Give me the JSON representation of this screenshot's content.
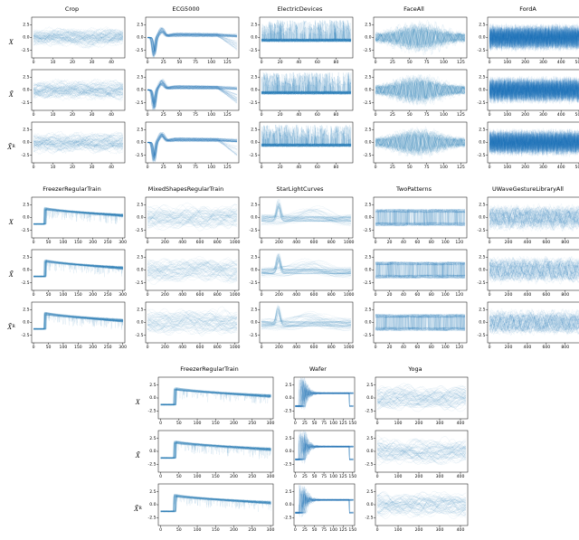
{
  "figure": {
    "background": "#ffffff",
    "line_color": "#1f77b4",
    "axis_color": "#000000",
    "series_style": "ensemble-overlay"
  },
  "row_labels": [
    {
      "base": "X",
      "sub": ""
    },
    {
      "base": "X̃",
      "sub": ""
    },
    {
      "base": "X̃",
      "sub": "R"
    }
  ],
  "groups": [
    {
      "columns": [
        0,
        1,
        2,
        3,
        4
      ]
    },
    {
      "columns": [
        5,
        6,
        7,
        8,
        9
      ]
    },
    {
      "columns": [
        10,
        11,
        12
      ]
    }
  ],
  "chart_data": [
    {
      "type": "line",
      "title": "Crop",
      "signal": "smooth",
      "x_max": 46,
      "x_ticks": [
        0,
        10,
        20,
        30,
        40
      ],
      "y_ticks": [
        2.5,
        0.0,
        -2.5
      ],
      "ylim": [
        -4,
        4
      ],
      "n_series": 60,
      "alpha": 0.1,
      "points": 110,
      "xlabel": "",
      "ylabel": ""
    },
    {
      "type": "line",
      "title": "ECG5000",
      "signal": "ecg",
      "x_max": 140,
      "x_ticks": [
        0,
        25,
        50,
        75,
        100,
        125
      ],
      "y_ticks": [
        2.5,
        0.0,
        -2.5
      ],
      "ylim": [
        -4,
        4
      ],
      "n_series": 60,
      "alpha": 0.12,
      "points": 170,
      "xlabel": "",
      "ylabel": ""
    },
    {
      "type": "line",
      "title": "ElectricDevices",
      "signal": "spikes",
      "x_max": 96,
      "x_ticks": [
        0,
        20,
        40,
        60,
        80
      ],
      "y_ticks": [
        2.5,
        0.0,
        -2.5
      ],
      "ylim": [
        -4,
        4
      ],
      "n_series": 60,
      "alpha": 0.15,
      "points": 200,
      "xlabel": "",
      "ylabel": ""
    },
    {
      "type": "line",
      "title": "FaceAll",
      "signal": "am",
      "x_max": 131,
      "x_ticks": [
        0,
        25,
        50,
        75,
        100,
        125
      ],
      "y_ticks": [
        2.5,
        0.0,
        -2.5
      ],
      "ylim": [
        -4,
        4
      ],
      "n_series": 70,
      "alpha": 0.09,
      "points": 220,
      "xlabel": "",
      "ylabel": ""
    },
    {
      "type": "line",
      "title": "FordA",
      "signal": "noise",
      "x_max": 500,
      "x_ticks": [
        0,
        100,
        200,
        300,
        400,
        500
      ],
      "y_ticks": [
        2.5,
        0.0,
        -2.5
      ],
      "ylim": [
        -4,
        4
      ],
      "n_series": 80,
      "alpha": 0.07,
      "points": 260,
      "xlabel": "",
      "ylabel": ""
    },
    {
      "type": "line",
      "title": "FreezerRegularTrain",
      "signal": "step",
      "x_max": 301,
      "x_ticks": [
        0,
        50,
        100,
        150,
        200,
        250,
        300
      ],
      "y_ticks": [
        2.5,
        0.0,
        -2.5
      ],
      "ylim": [
        -4,
        4
      ],
      "n_series": 60,
      "alpha": 0.1,
      "points": 200,
      "xlabel": "",
      "ylabel": ""
    },
    {
      "type": "line",
      "title": "MixedShapesRegularTrain",
      "signal": "waves",
      "x_max": 1024,
      "x_ticks": [
        0,
        200,
        400,
        600,
        800,
        1000
      ],
      "y_ticks": [
        2.5,
        0.0,
        -2.5
      ],
      "ylim": [
        -4,
        4
      ],
      "n_series": 60,
      "alpha": 0.09,
      "points": 220,
      "xlabel": "",
      "ylabel": ""
    },
    {
      "type": "line",
      "title": "StarLightCurves",
      "signal": "peak",
      "x_max": 1024,
      "x_ticks": [
        0,
        200,
        400,
        600,
        800,
        1000
      ],
      "y_ticks": [
        2.5,
        0.0,
        -2.5
      ],
      "ylim": [
        -4,
        4
      ],
      "n_series": 60,
      "alpha": 0.09,
      "points": 220,
      "xlabel": "",
      "ylabel": ""
    },
    {
      "type": "line",
      "title": "TwoPatterns",
      "signal": "square",
      "x_max": 128,
      "x_ticks": [
        0,
        20,
        40,
        60,
        80,
        100,
        120
      ],
      "y_ticks": [
        2.5,
        0.0,
        -2.5
      ],
      "ylim": [
        -4,
        4
      ],
      "n_series": 70,
      "alpha": 0.08,
      "points": 220,
      "xlabel": "",
      "ylabel": ""
    },
    {
      "type": "line",
      "title": "UWaveGestureLibraryAll",
      "signal": "osc",
      "x_max": 945,
      "x_ticks": [
        0,
        200,
        400,
        600,
        800
      ],
      "y_ticks": [
        2.5,
        0.0,
        -2.5
      ],
      "ylim": [
        -4,
        4
      ],
      "n_series": 70,
      "alpha": 0.08,
      "points": 260,
      "xlabel": "",
      "ylabel": ""
    },
    {
      "type": "line",
      "title": "FreezerRegularTrain",
      "signal": "step",
      "x_max": 301,
      "x_ticks": [
        0,
        50,
        100,
        150,
        200,
        250,
        300
      ],
      "y_ticks": [
        2.5,
        0.0,
        -2.5
      ],
      "ylim": [
        -4,
        4
      ],
      "n_series": 60,
      "alpha": 0.1,
      "points": 200,
      "xlabel": "",
      "ylabel": ""
    },
    {
      "type": "line",
      "title": "Wafer",
      "signal": "wafer",
      "x_max": 152,
      "x_ticks": [
        0,
        25,
        50,
        75,
        100,
        125,
        150
      ],
      "y_ticks": [
        2.5,
        0.0,
        -2.5
      ],
      "ylim": [
        -4,
        4
      ],
      "n_series": 60,
      "alpha": 0.12,
      "points": 220,
      "xlabel": "",
      "ylabel": ""
    },
    {
      "type": "line",
      "title": "Yoga",
      "signal": "waves",
      "x_max": 426,
      "x_ticks": [
        0,
        100,
        200,
        300,
        400
      ],
      "y_ticks": [
        2.5,
        0.0,
        -2.5
      ],
      "ylim": [
        -4,
        4
      ],
      "n_series": 60,
      "alpha": 0.1,
      "points": 200,
      "xlabel": "",
      "ylabel": ""
    }
  ]
}
